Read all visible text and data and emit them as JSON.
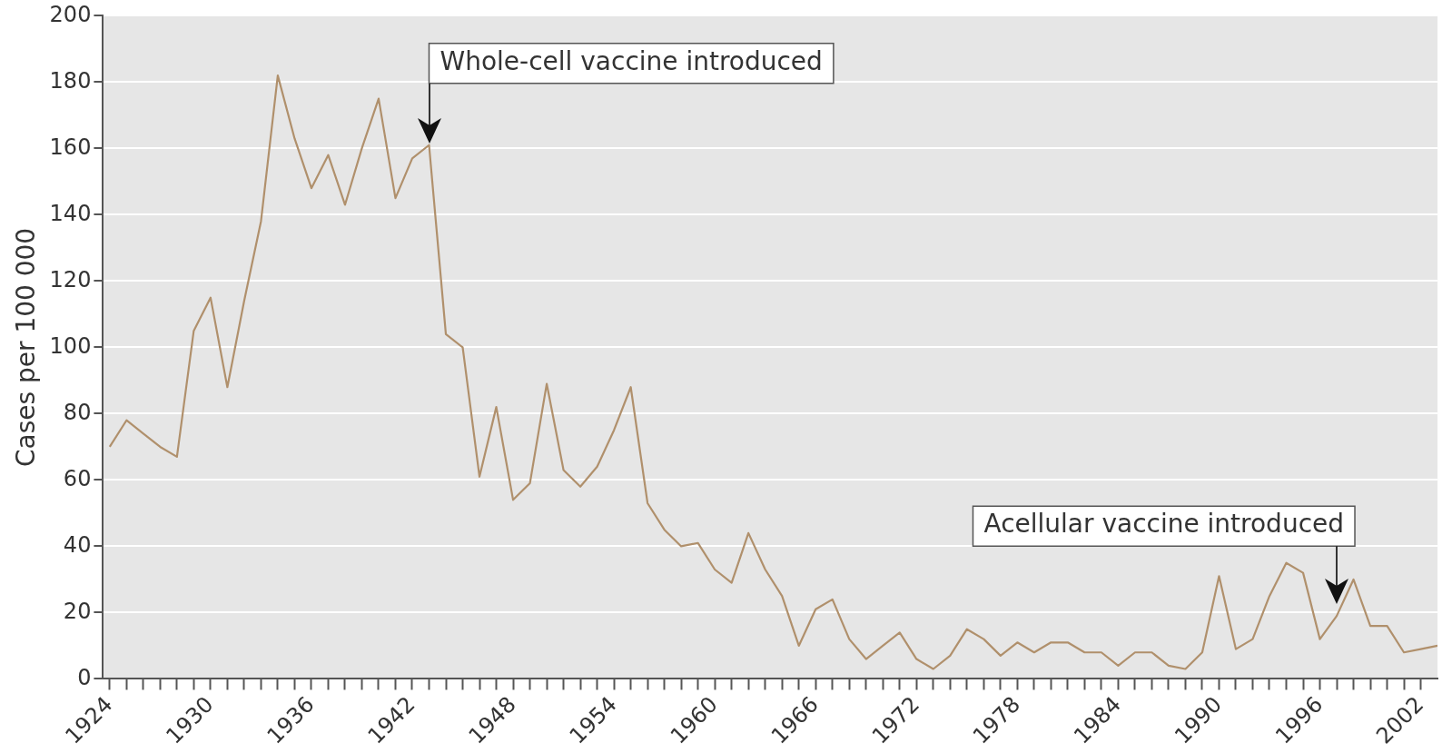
{
  "chart_data": {
    "type": "line",
    "ylabel": "Cases per 100 000",
    "x": [
      1924,
      1925,
      1926,
      1927,
      1928,
      1929,
      1930,
      1931,
      1932,
      1933,
      1934,
      1935,
      1936,
      1937,
      1938,
      1939,
      1940,
      1941,
      1942,
      1943,
      1944,
      1945,
      1946,
      1947,
      1948,
      1949,
      1950,
      1951,
      1952,
      1953,
      1954,
      1955,
      1956,
      1957,
      1958,
      1959,
      1960,
      1961,
      1962,
      1963,
      1964,
      1965,
      1966,
      1967,
      1968,
      1969,
      1970,
      1971,
      1972,
      1973,
      1974,
      1975,
      1976,
      1977,
      1978,
      1979,
      1980,
      1981,
      1982,
      1983,
      1984,
      1985,
      1986,
      1987,
      1988,
      1989,
      1990,
      1991,
      1992,
      1993,
      1994,
      1995,
      1996,
      1997,
      1998,
      1999,
      2000,
      2001,
      2002,
      2003
    ],
    "series": [
      {
        "color": "#b0906c",
        "values": [
          70,
          78,
          74,
          70,
          67,
          105,
          115,
          88,
          114,
          138,
          182,
          163,
          148,
          158,
          143,
          160,
          175,
          145,
          157,
          161,
          104,
          100,
          61,
          82,
          54,
          59,
          89,
          63,
          58,
          64,
          75,
          88,
          53,
          45,
          40,
          41,
          33,
          29,
          44,
          33,
          25,
          10,
          21,
          24,
          12,
          6,
          10,
          14,
          6,
          3,
          7,
          15,
          12,
          7,
          11,
          8,
          11,
          11,
          8,
          8,
          4,
          8,
          8,
          4,
          3,
          8,
          31,
          9,
          12,
          25,
          35,
          32,
          12,
          19,
          30,
          16,
          16,
          8,
          9,
          10
        ]
      }
    ],
    "xlim": [
      1923.6,
      2003
    ],
    "xticks": [
      1924,
      {
        "value": 1925,
        "label": null
      },
      {
        "value": 1926,
        "label": null
      },
      {
        "value": 1927,
        "label": null
      },
      {
        "value": 1928,
        "label": null
      },
      {
        "value": 1929,
        "label": null
      },
      1930,
      {
        "value": 1931,
        "label": null
      },
      {
        "value": 1932,
        "label": null
      },
      {
        "value": 1933,
        "label": null
      },
      {
        "value": 1934,
        "label": null
      },
      {
        "value": 1935,
        "label": null
      },
      1936,
      {
        "value": 1937,
        "label": null
      },
      {
        "value": 1938,
        "label": null
      },
      {
        "value": 1939,
        "label": null
      },
      {
        "value": 1940,
        "label": null
      },
      {
        "value": 1941,
        "label": null
      },
      1942,
      {
        "value": 1943,
        "label": null
      },
      {
        "value": 1944,
        "label": null
      },
      {
        "value": 1945,
        "label": null
      },
      {
        "value": 1946,
        "label": null
      },
      {
        "value": 1947,
        "label": null
      },
      1948,
      {
        "value": 1949,
        "label": null
      },
      {
        "value": 1950,
        "label": null
      },
      {
        "value": 1951,
        "label": null
      },
      {
        "value": 1952,
        "label": null
      },
      {
        "value": 1953,
        "label": null
      },
      1954,
      {
        "value": 1955,
        "label": null
      },
      {
        "value": 1956,
        "label": null
      },
      {
        "value": 1957,
        "label": null
      },
      {
        "value": 1958,
        "label": null
      },
      {
        "value": 1959,
        "label": null
      },
      1960,
      {
        "value": 1961,
        "label": null
      },
      {
        "value": 1962,
        "label": null
      },
      {
        "value": 1963,
        "label": null
      },
      {
        "value": 1964,
        "label": null
      },
      {
        "value": 1965,
        "label": null
      },
      1966,
      {
        "value": 1967,
        "label": null
      },
      {
        "value": 1968,
        "label": null
      },
      {
        "value": 1969,
        "label": null
      },
      {
        "value": 1970,
        "label": null
      },
      {
        "value": 1971,
        "label": null
      },
      1972,
      {
        "value": 1973,
        "label": null
      },
      {
        "value": 1974,
        "label": null
      },
      {
        "value": 1975,
        "label": null
      },
      {
        "value": 1976,
        "label": null
      },
      {
        "value": 1977,
        "label": null
      },
      1978,
      {
        "value": 1979,
        "label": null
      },
      {
        "value": 1980,
        "label": null
      },
      {
        "value": 1981,
        "label": null
      },
      {
        "value": 1982,
        "label": null
      },
      {
        "value": 1983,
        "label": null
      },
      1984,
      {
        "value": 1985,
        "label": null
      },
      {
        "value": 1986,
        "label": null
      },
      {
        "value": 1987,
        "label": null
      },
      {
        "value": 1988,
        "label": null
      },
      {
        "value": 1989,
        "label": null
      },
      1990,
      {
        "value": 1991,
        "label": null
      },
      {
        "value": 1992,
        "label": null
      },
      {
        "value": 1993,
        "label": null
      },
      {
        "value": 1994,
        "label": null
      },
      {
        "value": 1995,
        "label": null
      },
      1996,
      {
        "value": 1997,
        "label": null
      },
      {
        "value": 1998,
        "label": null
      },
      {
        "value": 1999,
        "label": null
      },
      {
        "value": 2000,
        "label": null
      },
      {
        "value": 2001,
        "label": null
      },
      2002
    ],
    "ylim": [
      0,
      200
    ],
    "yticks": [
      0,
      20,
      40,
      60,
      80,
      100,
      120,
      140,
      160,
      180,
      200
    ],
    "grid": "y",
    "legend": false,
    "marker": "none",
    "line_style": "solid",
    "annotations": [
      {
        "text": "Whole-cell vaccine introduced",
        "x": 1943,
        "y": 161
      },
      {
        "text": "Acellular vaccine introduced",
        "x": 1997,
        "y": 22
      }
    ]
  }
}
